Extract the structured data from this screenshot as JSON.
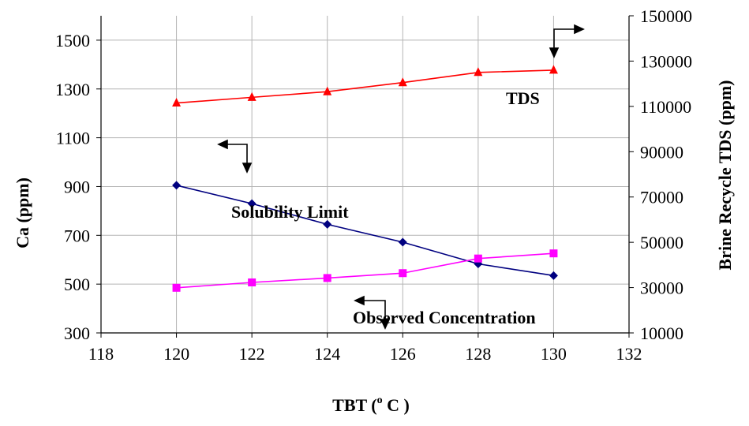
{
  "chart_data": {
    "type": "line",
    "x": [
      120,
      122,
      124,
      126,
      128,
      130
    ],
    "xlim": [
      118,
      132
    ],
    "xticks": [
      118,
      120,
      122,
      124,
      126,
      128,
      130,
      132
    ],
    "ylim_left": [
      300,
      1600
    ],
    "yticks_left": [
      300,
      500,
      700,
      900,
      1100,
      1300,
      1500
    ],
    "ylim_right": [
      10000,
      150000
    ],
    "yticks_right": [
      10000,
      30000,
      50000,
      70000,
      90000,
      110000,
      130000,
      150000
    ],
    "xlabel_main": "TBT (",
    "xlabel_sup": "o",
    "xlabel_unit": " C )",
    "ylabel_left": "Ca (ppm)",
    "ylabel_right": "Brine Recycle TDS (ppm)",
    "grid": true,
    "legend": "none",
    "series": [
      {
        "name": "TDS",
        "axis": "right",
        "marker": "triangle",
        "color": "#ff0000",
        "values": [
          111500,
          114000,
          116500,
          120500,
          125000,
          126000
        ]
      },
      {
        "name": "Solubility Limit",
        "axis": "left",
        "marker": "diamond",
        "color": "#000080",
        "values": [
          905,
          830,
          745,
          672,
          583,
          535
        ]
      },
      {
        "name": "Observed Concentration",
        "axis": "left",
        "marker": "square",
        "color": "#ff00ff",
        "values": [
          485,
          507,
          525,
          545,
          605,
          626
        ]
      }
    ],
    "annotations": [
      "TDS",
      "Solubility Limit",
      "Observed Concentration"
    ]
  }
}
